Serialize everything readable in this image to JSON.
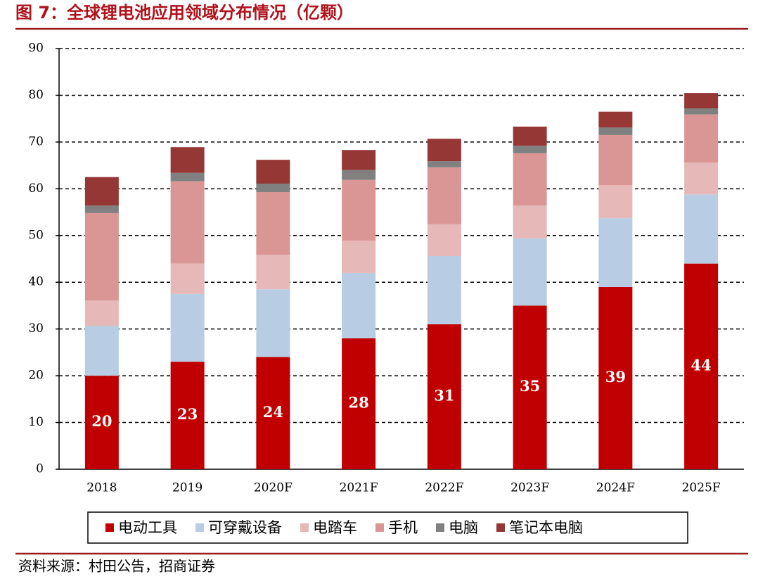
{
  "chart_data": {
    "type": "stacked_bar",
    "title": "图 7：全球锂电池应用领域分布情况（亿颗）",
    "categories": [
      "2018",
      "2019",
      "2020F",
      "2021F",
      "2022F",
      "2023F",
      "2024F",
      "2025F"
    ],
    "series": [
      {
        "name": "电动工具",
        "color": "#c00000",
        "values": [
          20,
          23,
          24,
          28,
          31,
          35,
          39,
          44
        ],
        "show_labels": true
      },
      {
        "name": "可穿戴设备",
        "color": "#b8cce4",
        "values": [
          10.7,
          14.5,
          14.5,
          14,
          14.6,
          14.4,
          14.7,
          14.8
        ]
      },
      {
        "name": "电踏车",
        "color": "#e6b8b7",
        "values": [
          5.4,
          6.5,
          7.4,
          6.9,
          6.8,
          7,
          7.1,
          6.8
        ]
      },
      {
        "name": "手机",
        "color": "#da9694",
        "values": [
          18.7,
          17.6,
          13.4,
          13,
          12.2,
          11.2,
          10.7,
          10.3
        ]
      },
      {
        "name": "电脑",
        "color": "#808080",
        "values": [
          1.6,
          1.8,
          1.8,
          2.1,
          1.3,
          1.6,
          1.6,
          1.3
        ]
      },
      {
        "name": "笔记本电脑",
        "color": "#953735",
        "values": [
          6.1,
          5.5,
          5.1,
          4.3,
          4.8,
          4.1,
          3.4,
          3.3
        ]
      }
    ],
    "ylim": [
      0,
      90
    ],
    "yticks": [
      0,
      10,
      20,
      30,
      40,
      50,
      60,
      70,
      80,
      90
    ],
    "grid": true,
    "legend": "bottom",
    "source": "资料来源：村田公告，招商证券"
  }
}
